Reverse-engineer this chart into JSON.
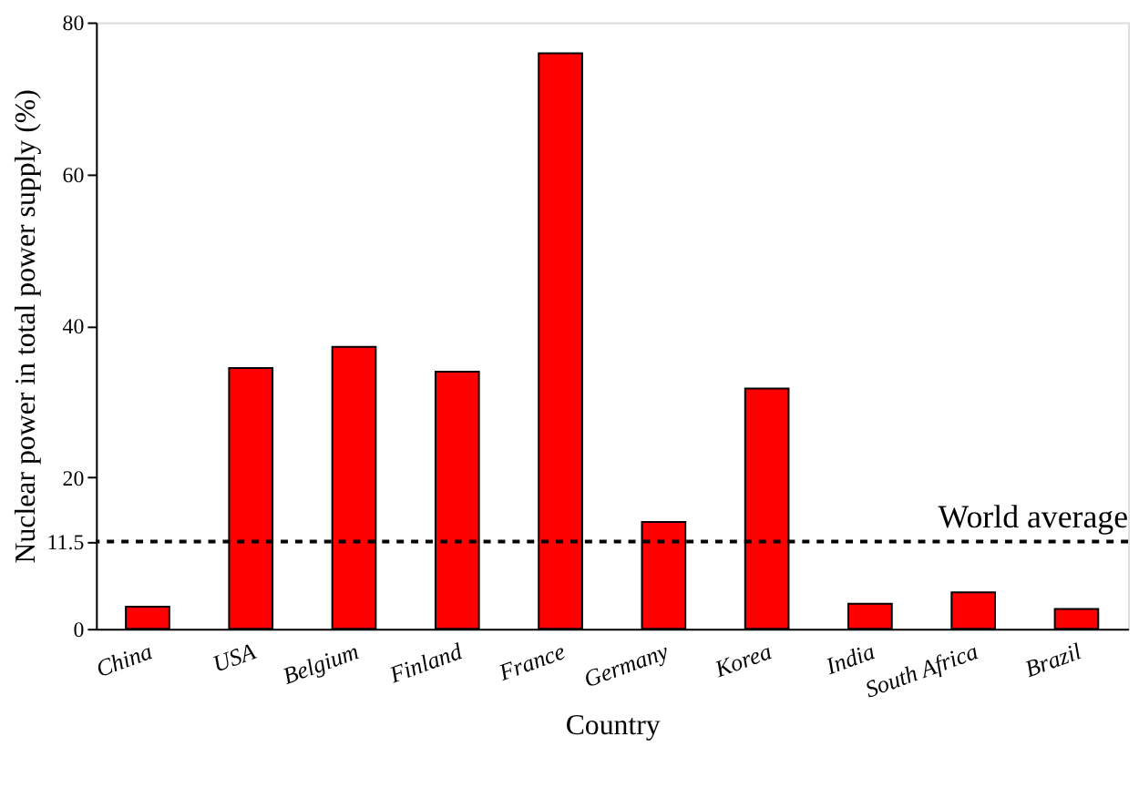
{
  "chart_data": {
    "type": "bar",
    "xlabel": "Country",
    "ylabel": "Nuclear power in total power supply (%)",
    "categories": [
      "China",
      "USA",
      "Belgium",
      "Finland",
      "France",
      "Germany",
      "Korea",
      "India",
      "South Africa",
      "Brazil"
    ],
    "values": [
      2.9,
      34.4,
      37.2,
      33.9,
      75.9,
      14.1,
      31.7,
      3.3,
      4.8,
      2.6
    ],
    "color": "#ff0000",
    "ylim": [
      0,
      80
    ],
    "yticks": [
      0,
      11.5,
      20,
      40,
      60,
      80
    ],
    "ref_lines": [
      {
        "axis": "y",
        "value": 11.5,
        "label": "World average",
        "line_style": "dashed",
        "color": "#000000"
      }
    ],
    "grid": false
  }
}
